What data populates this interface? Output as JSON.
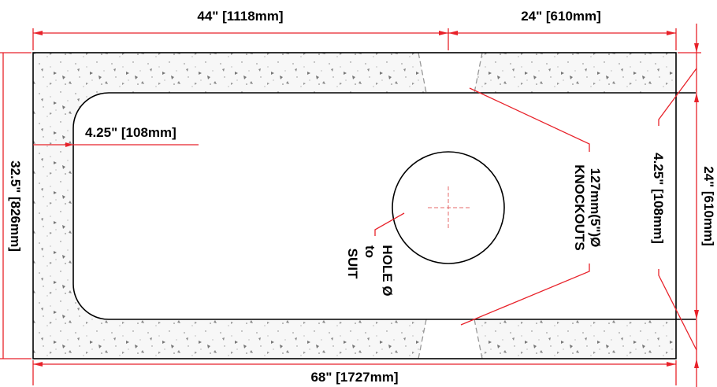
{
  "dimensions": {
    "top_left": "44\" [1118mm]",
    "top_right": "24\" [610mm]",
    "bottom": "68\" [1727mm]",
    "left": "32.5\" [826mm]",
    "right_partial": "24\" [610mm]",
    "inner_left": "4.25\" [108mm]",
    "inner_right": "4.25\" [108mm]"
  },
  "annotations": {
    "knockouts_line1": "127mm(5\")Ø",
    "knockouts_line2": "KNOCKOUTS",
    "hole_line1": "HOLE Ø",
    "hole_line2": "to",
    "hole_line3": "SUIT"
  },
  "colors": {
    "dimension": "#e8222a",
    "outline": "#000000",
    "concrete_fill": "#f4f4f4",
    "knockout_dash": "#999999"
  }
}
